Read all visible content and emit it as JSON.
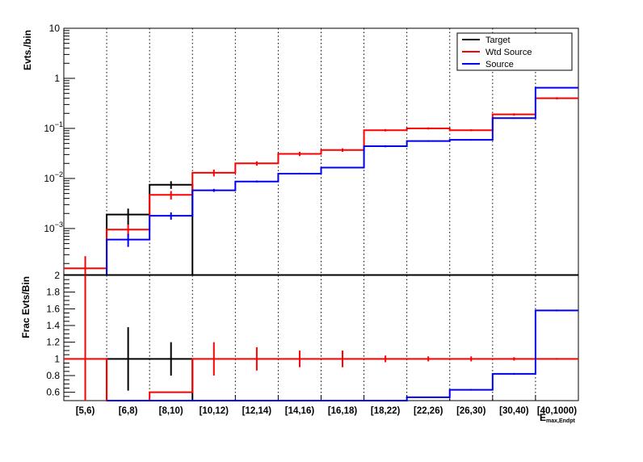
{
  "chart_data": [
    {
      "type": "step-histogram",
      "panel": "top",
      "ylabel": "Evts./bin",
      "yscale": "log",
      "ylim": [
        0.00012,
        10
      ],
      "y_ticks": [
        {
          "value": 10,
          "label": "10"
        },
        {
          "value": 1,
          "label": "1"
        },
        {
          "value": 0.1,
          "label": "10",
          "exp": "−1"
        },
        {
          "value": 0.01,
          "label": "10",
          "exp": "−2"
        },
        {
          "value": 0.001,
          "label": "10",
          "exp": "−3"
        }
      ],
      "categories": [
        "[5,6)",
        "[6,8)",
        "[8,10)",
        "[10,12)",
        "[12,14)",
        "[14,16)",
        "[16,18)",
        "[18,22)",
        "[22,26)",
        "[26,30)",
        "[30,40)",
        "[40,1000)"
      ],
      "legend_position": "top-right",
      "grid_x": true,
      "series": [
        {
          "name": "Target",
          "color": "#000000",
          "values": [
            null,
            0.0019,
            0.0075,
            null,
            null,
            null,
            null,
            null,
            null,
            null,
            null,
            null
          ],
          "err_lo": [
            null,
            0.0012,
            0.0062,
            null,
            null,
            null,
            null,
            null,
            null,
            null,
            null,
            null
          ],
          "err_hi": [
            null,
            0.0025,
            0.0088,
            null,
            null,
            null,
            null,
            null,
            null,
            null,
            null,
            null
          ]
        },
        {
          "name": "Wtd Source",
          "color": "#ff0000",
          "values": [
            0.00016,
            0.00095,
            0.0047,
            0.013,
            0.02,
            0.031,
            0.037,
            0.092,
            0.1,
            0.092,
            0.19,
            0.4
          ],
          "err_lo": [
            0.00012,
            0.0007,
            0.0038,
            0.011,
            0.018,
            0.028,
            0.034,
            0.087,
            0.095,
            0.088,
            0.18,
            0.38
          ],
          "err_hi": [
            0.00028,
            0.0012,
            0.0056,
            0.015,
            0.022,
            0.034,
            0.04,
            0.097,
            0.105,
            0.096,
            0.2,
            0.42
          ]
        },
        {
          "name": "Source",
          "color": "#0000ee",
          "values": [
            null,
            0.0006,
            0.0018,
            0.0058,
            0.0087,
            0.0125,
            0.0165,
            0.044,
            0.056,
            0.059,
            0.16,
            0.65
          ],
          "err_lo": [
            null,
            0.00043,
            0.0015,
            0.0054,
            0.0083,
            0.012,
            0.016,
            0.042,
            0.054,
            0.057,
            0.155,
            0.64
          ],
          "err_hi": [
            null,
            0.00078,
            0.0021,
            0.0062,
            0.0091,
            0.013,
            0.017,
            0.046,
            0.058,
            0.061,
            0.165,
            0.66
          ]
        }
      ]
    },
    {
      "type": "step-histogram",
      "panel": "bottom",
      "ylabel": "Frac Evts/Bin",
      "ylim": [
        0.5,
        2
      ],
      "y_ticks": [
        {
          "value": 0.6,
          "label": "0.6"
        },
        {
          "value": 0.8,
          "label": "0.8"
        },
        {
          "value": 1,
          "label": "1"
        },
        {
          "value": 1.2,
          "label": "1.2"
        },
        {
          "value": 1.4,
          "label": "1.4"
        },
        {
          "value": 1.6,
          "label": "1.6"
        },
        {
          "value": 1.8,
          "label": "1.8"
        },
        {
          "value": 2,
          "label": "2"
        }
      ],
      "categories": [
        "[5,6)",
        "[6,8)",
        "[8,10)",
        "[10,12)",
        "[12,14)",
        "[14,16)",
        "[16,18)",
        "[18,22)",
        "[22,26)",
        "[26,30)",
        "[30,40)",
        "[40,1000)"
      ],
      "xlabel": "E",
      "xlabel_sub": "max,Endpt",
      "series": [
        {
          "name": "Target",
          "color": "#000000",
          "values": [
            null,
            1.0,
            1.0,
            null,
            null,
            null,
            null,
            null,
            null,
            null,
            null,
            null
          ],
          "err_lo": [
            null,
            0.62,
            0.8,
            null,
            null,
            null,
            null,
            null,
            null,
            null,
            null,
            null
          ],
          "err_hi": [
            null,
            1.38,
            1.2,
            null,
            null,
            null,
            null,
            null,
            null,
            null,
            null,
            null
          ]
        },
        {
          "name": "Wtd Source",
          "color": "#ff0000",
          "values": [
            1.0,
            0.5,
            0.6,
            1.0,
            1.0,
            1.0,
            1.0,
            1.0,
            1.0,
            1.0,
            1.0,
            1.0
          ],
          "err_lo": [
            0.5,
            null,
            null,
            0.8,
            0.86,
            0.9,
            0.9,
            0.96,
            0.97,
            0.97,
            0.98,
            0.99
          ],
          "err_hi": [
            2.0,
            null,
            null,
            1.2,
            1.14,
            1.1,
            1.1,
            1.04,
            1.03,
            1.03,
            1.02,
            1.01
          ]
        },
        {
          "name": "Source",
          "color": "#0000ee",
          "values": [
            null,
            0.5,
            0.5,
            0.5,
            0.5,
            0.5,
            0.5,
            0.5,
            0.54,
            0.63,
            0.82,
            1.58
          ],
          "err_lo": [
            null,
            null,
            null,
            null,
            null,
            null,
            null,
            null,
            null,
            0.62,
            0.81,
            1.57
          ],
          "err_hi": [
            null,
            null,
            null,
            null,
            null,
            null,
            null,
            null,
            null,
            0.64,
            0.83,
            1.59
          ]
        }
      ]
    }
  ]
}
